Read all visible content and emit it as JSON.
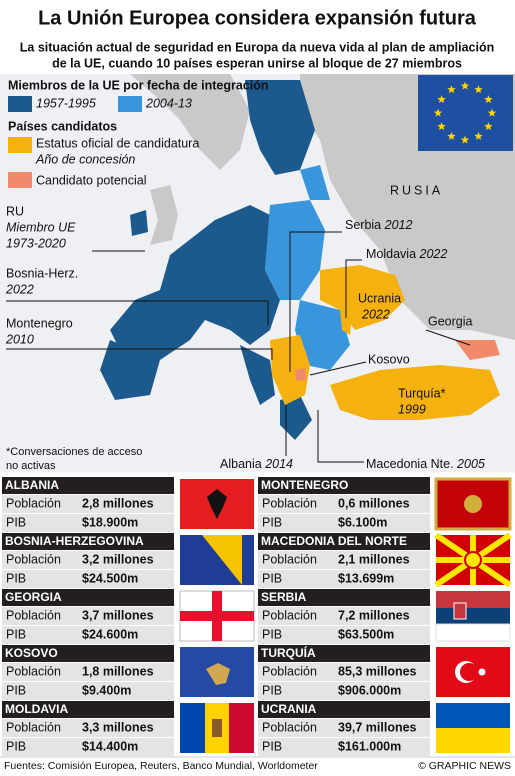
{
  "header": {
    "title": "La Unión Europea considera expansión futura",
    "subtitle": [
      "La situación actual de seguridad en Europa da nueva vida al plan de ampliación",
      "de la UE, cuando 10 países esperan unirse al bloque de 27 miembros"
    ]
  },
  "legend": {
    "members_heading": "Miembros de la UE por fecha de integración",
    "members": [
      "1957-1995",
      "2004-13"
    ],
    "candidates_heading": "Países candidatos",
    "official": "Estatus oficial de candidatura",
    "year_note": "Año de concesión",
    "potential": "Candidato potencial"
  },
  "map_labels": {
    "russia": "RUSIA",
    "uk": [
      "RU",
      "Miembro UE",
      "1973-2020"
    ],
    "serbia": {
      "name": "Serbia",
      "year": "2012"
    },
    "moldova": {
      "name": "Moldavia",
      "year": "2022"
    },
    "bosnia": [
      "Bosnia-Herz.",
      "2022"
    ],
    "ukraine": [
      "Ucrania",
      "2022"
    ],
    "georgia": "Georgia",
    "montenegro": [
      "Montenegro",
      "2010"
    ],
    "kosovo": "Kosovo",
    "turkey": [
      "Turquía*",
      "1999"
    ],
    "note": [
      "*Conversaciones de acceso",
      "no activas"
    ],
    "albania": {
      "name": "Albania",
      "year": "2014"
    },
    "macedonia": {
      "name": "Macedonia Nte.",
      "year": "2005"
    }
  },
  "row_labels": {
    "population": "Población",
    "gdp": "PIB"
  },
  "countries": [
    {
      "name": "ALBANIA",
      "population": "2,8 millones",
      "gdp": "$18.900m"
    },
    {
      "name": "BOSNIA-HERZEGOVINA",
      "population": "3,2 millones",
      "gdp": "$24.500m"
    },
    {
      "name": "GEORGIA",
      "population": "3,7 millones",
      "gdp": "$24.600m"
    },
    {
      "name": "KOSOVO",
      "population": "1,8 millones",
      "gdp": "$9.400m"
    },
    {
      "name": "MOLDAVIA",
      "population": "3,3 millones",
      "gdp": "$14.400m"
    },
    {
      "name": "MONTENEGRO",
      "population": "0,6 millones",
      "gdp": "$6.100m"
    },
    {
      "name": "MACEDONIA DEL NORTE",
      "population": "2,1 millones",
      "gdp": "$13.699m"
    },
    {
      "name": "SERBIA",
      "population": "7,2 millones",
      "gdp": "$63.500m"
    },
    {
      "name": "TURQUÍA",
      "population": "85,3 millones",
      "gdp": "$906.000m"
    },
    {
      "name": "UCRANIA",
      "population": "39,7 millones",
      "gdp": "$161.000m"
    }
  ],
  "footer": {
    "sources": "Fuentes: Comisión Europea, Reuters, Banco Mundial, Worldometer",
    "credit": "© GRAPHIC NEWS"
  }
}
